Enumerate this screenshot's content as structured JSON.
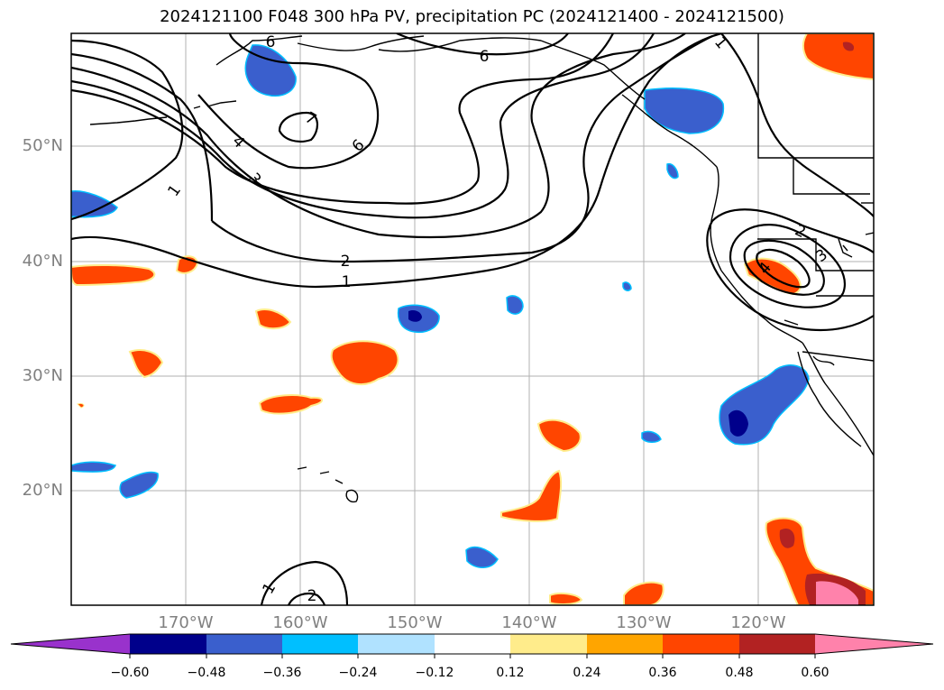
{
  "title": "2024121100 F048 300 hPa PV, precipitation PC (2024121400 - 2024121500)",
  "lat_labels": [
    "50°N",
    "40°N",
    "30°N",
    "20°N"
  ],
  "lon_labels": [
    "170°W",
    "160°W",
    "150°W",
    "140°W",
    "130°W",
    "120°W"
  ],
  "contour_labels": [
    "1",
    "2",
    "3",
    "4",
    "6",
    "7",
    "6",
    "6",
    "1",
    "2",
    "3",
    "4",
    "1",
    "1",
    "2"
  ],
  "colorbar": {
    "tick_labels": [
      "−0.60",
      "−0.48",
      "−0.36",
      "−0.24",
      "−0.12",
      "0.12",
      "0.24",
      "0.36",
      "0.48",
      "0.60"
    ],
    "colors": [
      "#9932cc",
      "#00008b",
      "#3a5fcd",
      "#00bfff",
      "#b0e2ff",
      "#ffffff",
      "#ffec8b",
      "#ffa500",
      "#ff4500",
      "#b22222",
      "#ff82ab"
    ]
  },
  "colors": {
    "grid": "#b0b0b0",
    "coast": "#000000",
    "contour": "#000000",
    "label_gray": "#808080"
  }
}
